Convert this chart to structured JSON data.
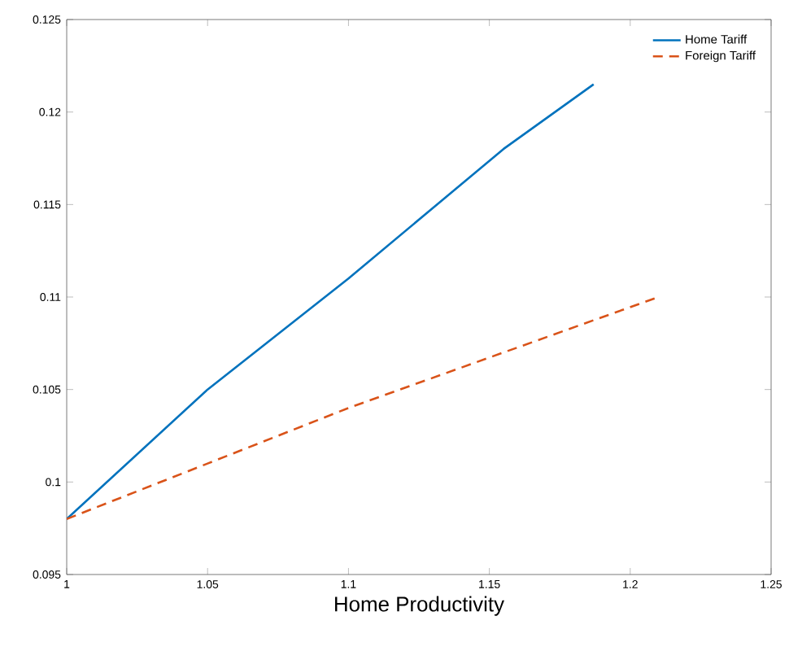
{
  "chart_data": {
    "type": "line",
    "xlabel": "Home Productivity",
    "xlim": [
      1,
      1.25
    ],
    "xticks": [
      1,
      1.05,
      1.1,
      1.15,
      1.2,
      1.25
    ],
    "ylim": [
      0.095,
      0.125
    ],
    "yticks": [
      0.095,
      0.1,
      0.105,
      0.11,
      0.115,
      0.12,
      0.125
    ],
    "legend": "top right",
    "grid": false,
    "series": [
      {
        "name": "Home Tariff",
        "color": "#0072bd",
        "line_style": "solid",
        "x": [
          1,
          1.05,
          1.1,
          1.155,
          1.187
        ],
        "values": [
          0.098,
          0.105,
          0.111,
          0.118,
          0.1215
        ]
      },
      {
        "name": "Foreign Tariff",
        "color": "#d95319",
        "line_style": "dashed",
        "x": [
          1,
          1.05,
          1.1,
          1.155,
          1.21
        ],
        "values": [
          0.098,
          0.101,
          0.104,
          0.107,
          0.11
        ]
      }
    ]
  }
}
